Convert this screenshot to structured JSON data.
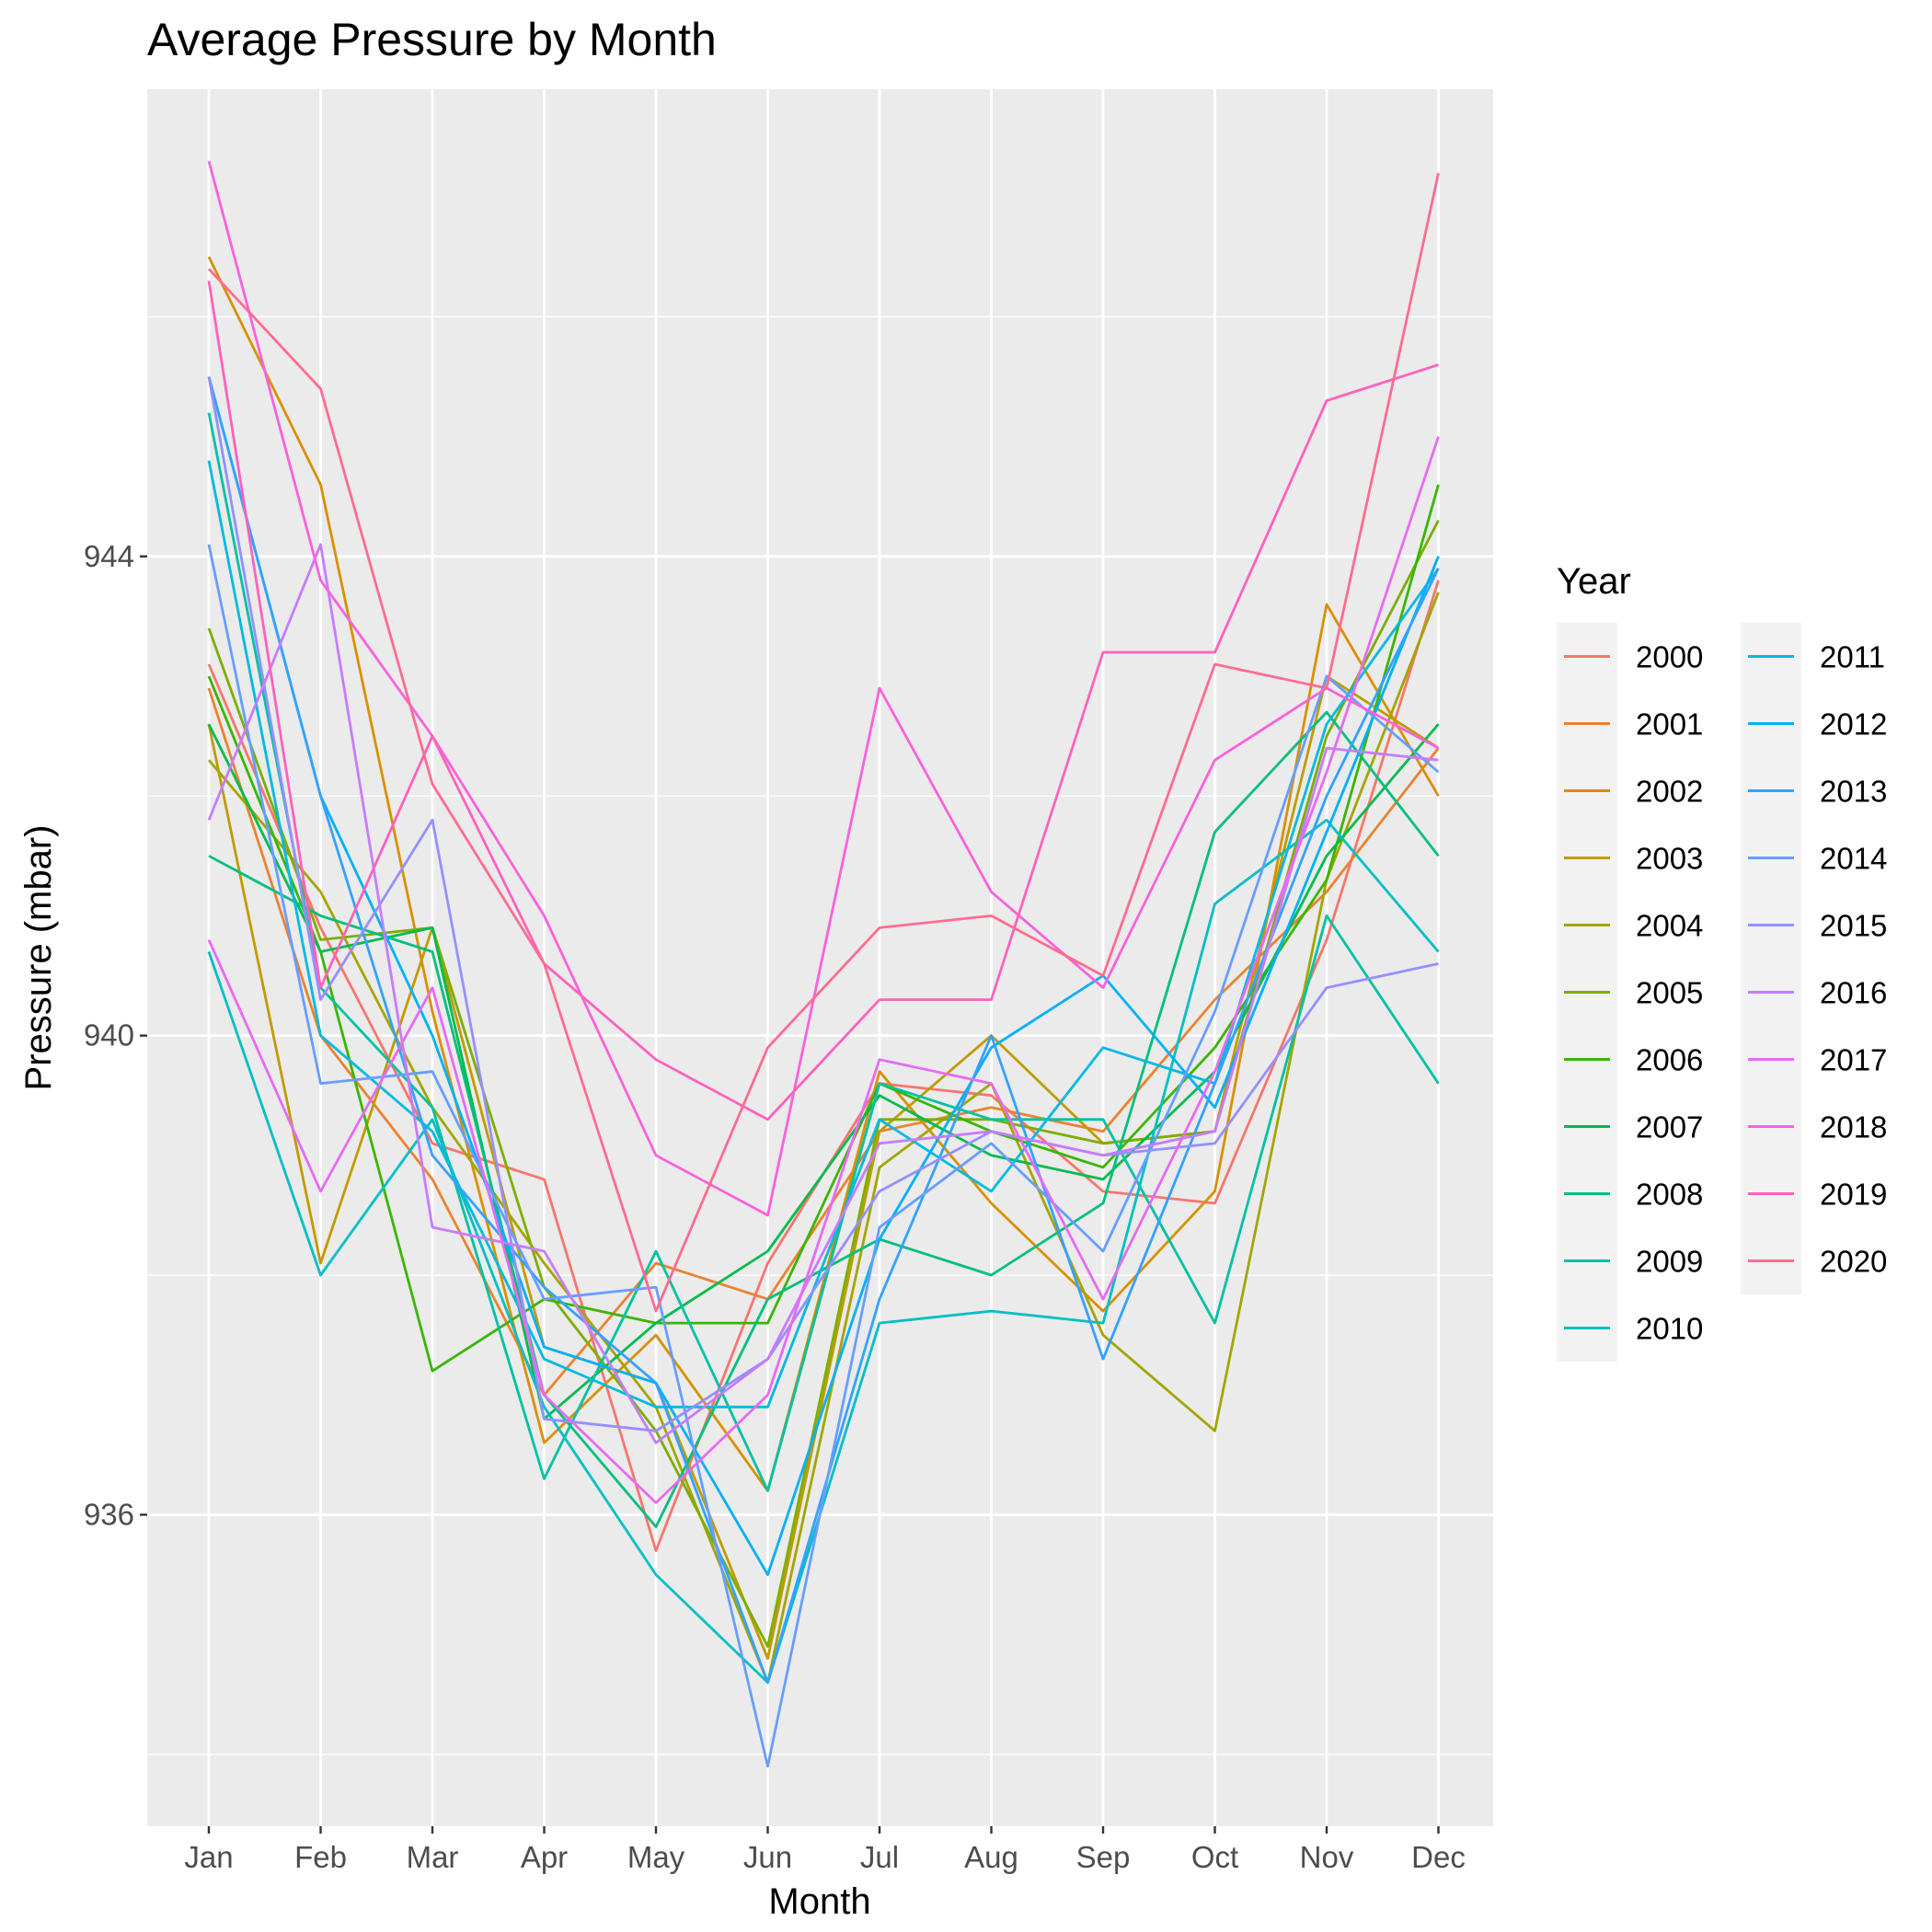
{
  "chart_data": {
    "type": "line",
    "title": "Average Pressure by Month",
    "xlabel": "Month",
    "ylabel": "Pressure (mbar)",
    "categories": [
      "Jan",
      "Feb",
      "Mar",
      "Apr",
      "May",
      "Jun",
      "Jul",
      "Aug",
      "Sep",
      "Oct",
      "Nov",
      "Dec"
    ],
    "ylim": [
      933.4,
      947.9
    ],
    "yticks": [
      936,
      940,
      944
    ],
    "ytick_labels": [
      "936",
      "940",
      "944"
    ],
    "grid": true,
    "legend_title": "Year",
    "legend_position": "right",
    "series": [
      {
        "name": "2000",
        "color": "#F8766D",
        "values": [
          943.1,
          940.9,
          939.1,
          938.8,
          935.7,
          938.1,
          939.6,
          939.5,
          938.7,
          938.6,
          940.8,
          943.8
        ]
      },
      {
        "name": "2001",
        "color": "#EA8331",
        "values": [
          942.9,
          940.0,
          938.8,
          937.0,
          938.1,
          937.8,
          939.2,
          939.4,
          939.2,
          940.3,
          941.2,
          942.4
        ]
      },
      {
        "name": "2002",
        "color": "#D89000",
        "values": [
          946.5,
          944.6,
          940.2,
          936.6,
          937.5,
          936.2,
          939.7,
          938.6,
          937.7,
          938.7,
          943.6,
          942.0
        ]
      },
      {
        "name": "2003",
        "color": "#C09B00",
        "values": [
          942.6,
          938.1,
          940.9,
          937.4,
          937.1,
          934.8,
          939.2,
          940.0,
          939.1,
          939.2,
          943.0,
          942.4
        ]
      },
      {
        "name": "2004",
        "color": "#A3A500",
        "values": [
          942.3,
          941.2,
          939.4,
          938.1,
          936.9,
          934.6,
          938.9,
          939.6,
          937.5,
          936.7,
          941.3,
          943.7
        ]
      },
      {
        "name": "2005",
        "color": "#7CAE00",
        "values": [
          943.4,
          940.8,
          940.9,
          937.9,
          936.7,
          934.9,
          939.3,
          939.3,
          939.1,
          939.2,
          942.5,
          944.3
        ]
      },
      {
        "name": "2006",
        "color": "#39B600",
        "values": [
          943.0,
          940.7,
          937.2,
          937.8,
          937.6,
          937.6,
          939.6,
          939.2,
          938.9,
          939.9,
          941.3,
          944.6
        ]
      },
      {
        "name": "2007",
        "color": "#00BB4E",
        "values": [
          942.6,
          940.7,
          940.9,
          936.8,
          937.6,
          938.2,
          939.5,
          939.0,
          938.8,
          939.7,
          941.5,
          942.6
        ]
      },
      {
        "name": "2008",
        "color": "#00BF7D",
        "values": [
          941.5,
          941.0,
          940.7,
          937.0,
          935.9,
          937.8,
          938.3,
          938.0,
          938.6,
          941.7,
          942.7,
          941.5
        ]
      },
      {
        "name": "2009",
        "color": "#00C1A3",
        "values": [
          945.2,
          940.4,
          939.4,
          936.3,
          938.2,
          936.2,
          939.6,
          939.3,
          939.3,
          937.6,
          941.0,
          939.6
        ]
      },
      {
        "name": "2010",
        "color": "#00BFC4",
        "values": [
          940.7,
          938.0,
          939.3,
          936.9,
          935.5,
          934.6,
          937.6,
          937.7,
          937.6,
          941.1,
          941.8,
          940.7
        ]
      },
      {
        "name": "2011",
        "color": "#00BAE0",
        "values": [
          944.8,
          940.0,
          939.2,
          937.3,
          936.9,
          936.9,
          939.3,
          938.7,
          939.9,
          939.6,
          942.6,
          943.9
        ]
      },
      {
        "name": "2012",
        "color": "#00B0F6",
        "values": [
          945.5,
          942.0,
          940.0,
          937.4,
          937.1,
          935.5,
          938.3,
          939.9,
          940.5,
          939.4,
          941.7,
          944.0
        ]
      },
      {
        "name": "2013",
        "color": "#35A2FF",
        "values": [
          945.5,
          942.0,
          939.0,
          937.9,
          937.1,
          934.6,
          937.8,
          940.0,
          937.3,
          939.6,
          942.0,
          943.9
        ]
      },
      {
        "name": "2014",
        "color": "#679EFF",
        "values": [
          944.1,
          939.6,
          939.7,
          937.8,
          937.9,
          933.9,
          938.4,
          939.1,
          938.2,
          940.2,
          943.0,
          942.2
        ]
      },
      {
        "name": "2015",
        "color": "#9590FF",
        "values": [
          945.5,
          940.3,
          941.8,
          936.8,
          936.7,
          937.3,
          938.7,
          939.2,
          939.0,
          939.1,
          940.4,
          940.6
        ]
      },
      {
        "name": "2016",
        "color": "#C77CFF",
        "values": [
          941.8,
          944.1,
          938.4,
          938.2,
          936.6,
          937.3,
          939.1,
          939.2,
          939.0,
          939.2,
          942.4,
          942.3
        ]
      },
      {
        "name": "2017",
        "color": "#E76BF3",
        "values": [
          940.8,
          938.7,
          940.4,
          937.0,
          936.1,
          937.0,
          939.8,
          939.6,
          937.8,
          939.7,
          942.2,
          945.0
        ]
      },
      {
        "name": "2018",
        "color": "#FA62DB",
        "values": [
          947.3,
          943.8,
          942.5,
          941.0,
          939.0,
          938.5,
          942.9,
          941.2,
          940.4,
          942.3,
          942.9,
          942.4
        ]
      },
      {
        "name": "2019",
        "color": "#FF62BC",
        "values": [
          946.3,
          940.4,
          942.5,
          940.6,
          939.8,
          939.3,
          940.3,
          940.3,
          943.2,
          943.2,
          945.3,
          945.6
        ]
      },
      {
        "name": "2020",
        "color": "#FF6C91",
        "values": [
          946.4,
          945.4,
          942.1,
          940.6,
          937.7,
          939.9,
          940.9,
          941.0,
          940.5,
          943.1,
          942.9,
          947.2
        ]
      }
    ]
  }
}
